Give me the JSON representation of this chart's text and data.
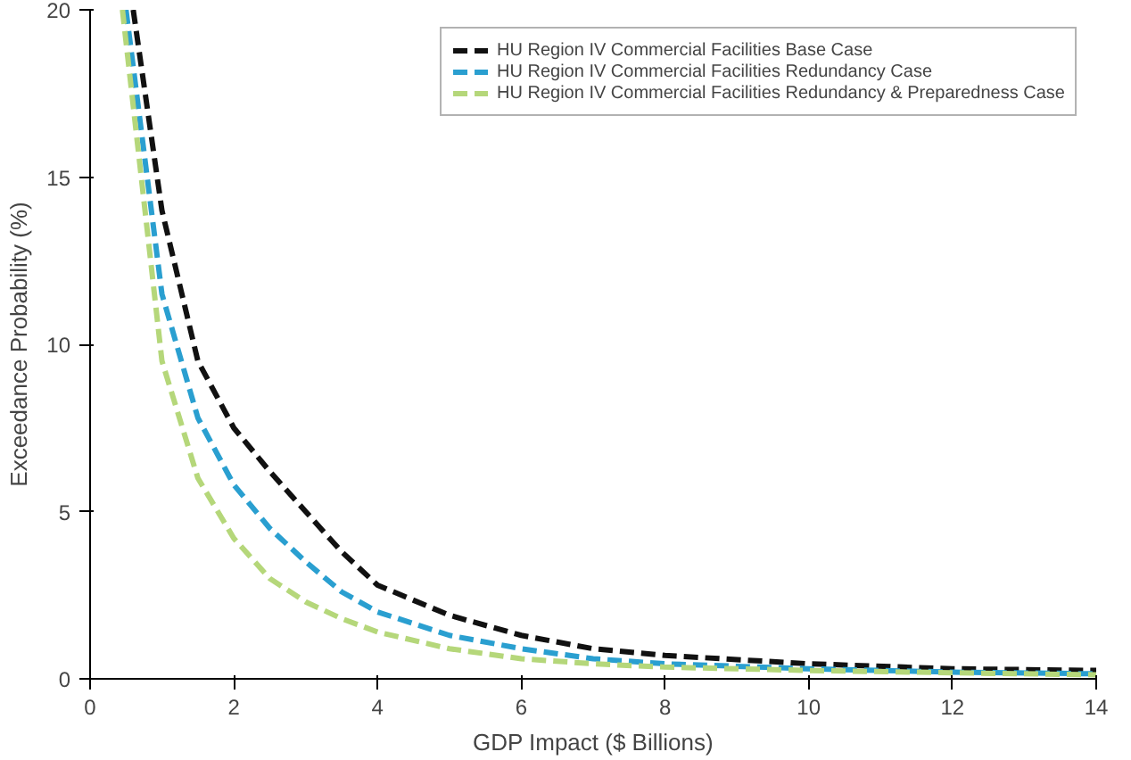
{
  "chart_data": {
    "type": "line",
    "xlabel": "GDP Impact ($ Billions)",
    "ylabel": "Exceedance Probability (%)",
    "xlim": [
      0,
      14
    ],
    "ylim": [
      0,
      20
    ],
    "xticks": [
      0,
      2,
      4,
      6,
      8,
      10,
      12,
      14
    ],
    "yticks": [
      0,
      5,
      10,
      15,
      20
    ],
    "grid": false,
    "legend": "top right",
    "line_style": "dashed",
    "series": [
      {
        "name": "HU Region IV Commercial Facilities Base Case",
        "color": "#111111",
        "x": [
          0.6,
          1,
          1.5,
          2,
          2.5,
          3,
          3.5,
          4,
          5,
          6,
          7,
          8,
          10,
          12,
          14
        ],
        "values": [
          20,
          14,
          9.5,
          7.5,
          6.2,
          5,
          3.8,
          2.8,
          1.9,
          1.3,
          0.9,
          0.7,
          0.45,
          0.3,
          0.25
        ]
      },
      {
        "name": "HU Region IV Commercial Facilities Redundancy Case",
        "color": "#2a9fd0",
        "x": [
          0.5,
          1,
          1.5,
          2,
          2.5,
          3,
          3.5,
          4,
          5,
          6,
          7,
          8,
          10,
          12,
          14
        ],
        "values": [
          20,
          11.5,
          7.8,
          5.8,
          4.5,
          3.5,
          2.6,
          2,
          1.3,
          0.9,
          0.6,
          0.45,
          0.3,
          0.2,
          0.15
        ]
      },
      {
        "name": "HU Region IV Commercial Facilities Redundancy & Preparedness Case",
        "color": "#b5d77a",
        "x": [
          0.45,
          1,
          1.5,
          2,
          2.5,
          3,
          3.5,
          4,
          5,
          6,
          7,
          8,
          10,
          12,
          14
        ],
        "values": [
          20,
          9.5,
          6,
          4.2,
          3,
          2.3,
          1.8,
          1.4,
          0.9,
          0.6,
          0.45,
          0.35,
          0.25,
          0.18,
          0.12
        ]
      }
    ]
  }
}
